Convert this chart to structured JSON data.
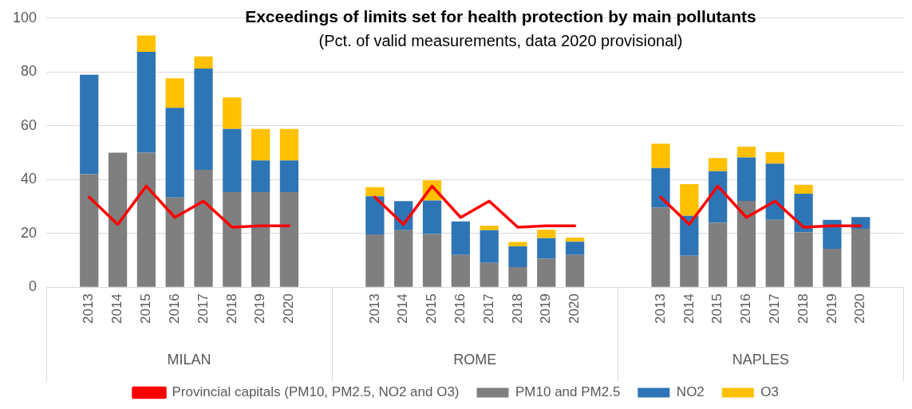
{
  "chart_data": {
    "type": "bar",
    "title": "Exceedings of limits set for health protection by main pollutants",
    "subtitle": "(Pct. of valid measurements, data 2020 provisional)",
    "categories": [
      null,
      "2013",
      "2014",
      "2015",
      "2016",
      "2017",
      "2018",
      "2019",
      "2020",
      null,
      null,
      "2013",
      "2014",
      "2015",
      "2016",
      "2017",
      "2018",
      "2019",
      "2020",
      null,
      null,
      "2013",
      "2014",
      "2015",
      "2016",
      "2017",
      "2018",
      "2019",
      "2020",
      null
    ],
    "series": [
      {
        "name": "PM10 and PM2.5",
        "color": "#7f7f7f",
        "values": [
          null,
          42,
          50,
          50,
          33.3,
          43.6,
          35.3,
          35.3,
          35.3,
          null,
          null,
          19.6,
          21.2,
          19.8,
          12,
          9,
          7.5,
          10.6,
          12,
          null,
          null,
          29.6,
          11.7,
          23.9,
          32.1,
          25,
          20.4,
          14.3,
          21.7,
          null
        ]
      },
      {
        "name": "NO2",
        "color": "#2e75b6",
        "values": [
          null,
          37,
          null,
          37.5,
          33.4,
          37.7,
          23.5,
          11.8,
          11.8,
          null,
          null,
          14.2,
          10.8,
          12.4,
          12.4,
          12.2,
          7.7,
          7.6,
          4.9,
          null,
          null,
          14.7,
          14.8,
          19.2,
          16.1,
          20.9,
          14.3,
          10.7,
          4.4,
          null
        ]
      },
      {
        "name": "O3",
        "color": "#ffc000",
        "values": [
          null,
          null,
          null,
          6.1,
          10.9,
          4.5,
          11.7,
          11.7,
          11.7,
          null,
          null,
          3.4,
          null,
          7.5,
          null,
          1.7,
          1.6,
          3.1,
          1.5,
          null,
          null,
          9,
          11.8,
          4.9,
          4,
          4.3,
          3.4,
          null,
          null,
          null
        ]
      },
      {
        "name": "Provincial capitals (PM10, PM2.5, NO2 and O3)",
        "type": "line",
        "color": "#ff0000",
        "values": [
          null,
          33.5,
          23.3,
          37.6,
          25.9,
          32,
          22.3,
          22.8,
          22.8,
          null,
          null,
          33.5,
          23.3,
          37.6,
          25.9,
          32,
          22.3,
          22.8,
          22.8,
          null,
          null,
          33.5,
          23.3,
          37.6,
          25.9,
          32,
          22.3,
          22.8,
          22.8,
          null
        ]
      }
    ],
    "annotations": [
      "MILAN",
      "ROME",
      "NAPLES"
    ],
    "stacked": true,
    "ylim": [
      0,
      100
    ],
    "yticks": [
      0,
      20,
      40,
      60,
      80,
      100
    ],
    "grid": "y",
    "legend": "bottom",
    "marker": "none",
    "line_style": "solid"
  }
}
